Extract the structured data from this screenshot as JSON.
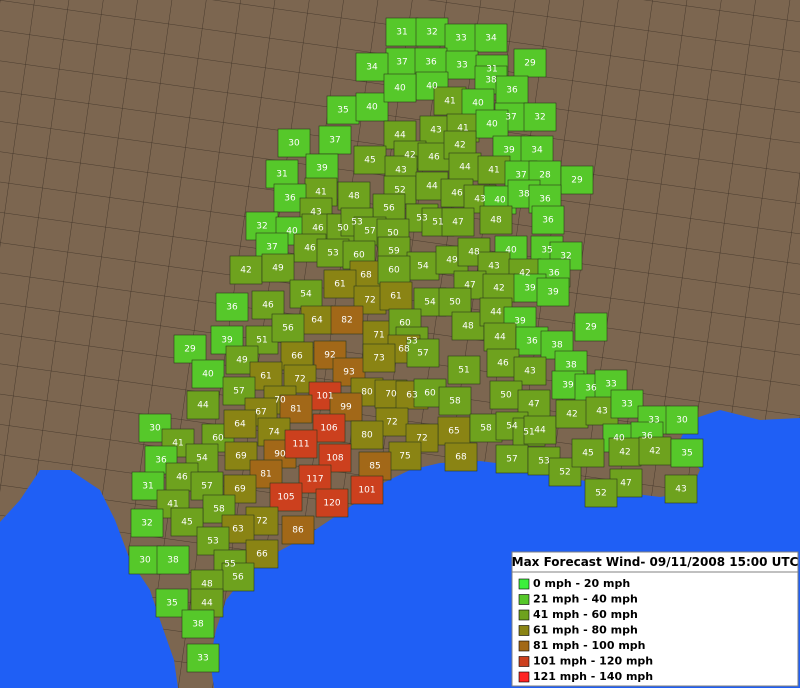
{
  "map": {
    "counties": [
      31,
      32,
      33,
      34,
      37,
      36,
      33,
      31,
      29,
      34,
      40,
      38,
      36,
      35,
      40,
      40,
      41,
      40,
      37,
      32,
      30,
      37,
      44,
      43,
      41,
      40,
      45,
      42,
      46,
      42,
      39,
      34,
      39,
      43,
      44,
      41,
      37,
      28,
      29,
      31,
      41,
      48,
      52,
      44,
      46,
      43,
      40,
      38,
      36,
      36,
      43,
      56,
      53,
      51,
      47,
      48,
      36,
      32,
      40,
      46,
      50,
      53,
      57,
      50,
      37,
      46,
      53,
      60,
      59,
      54,
      49,
      48,
      40,
      35,
      32,
      42,
      49,
      54,
      68,
      60,
      43,
      42,
      36,
      61,
      72,
      61,
      47,
      42,
      39,
      39,
      36,
      46,
      54,
      50,
      64,
      82,
      71,
      60,
      48,
      44,
      39,
      29,
      39,
      51,
      56,
      53,
      44,
      36,
      38,
      29,
      66,
      92,
      68,
      57,
      40,
      49,
      61,
      72,
      93,
      73,
      51,
      46,
      43,
      38,
      57,
      70,
      101,
      80,
      70,
      63,
      60,
      58,
      50,
      47,
      39,
      36,
      33,
      44,
      67,
      81,
      99,
      72,
      65,
      58,
      54,
      51,
      44,
      42,
      43,
      33,
      33,
      30,
      30,
      60,
      64,
      74,
      106,
      80,
      72,
      40,
      36,
      41,
      54,
      69,
      90,
      111,
      108,
      75,
      68,
      57,
      53,
      52,
      45,
      42,
      42,
      35,
      36,
      46,
      81,
      117,
      85,
      101,
      47,
      43,
      52,
      31,
      57,
      69,
      105,
      120,
      41,
      58,
      72,
      86,
      32,
      45,
      63,
      53,
      66,
      30,
      38,
      55,
      56,
      48,
      35,
      44,
      38,
      33
    ],
    "legend": {
      "title": "Max Forecast Wind- 09/11/2008 15:00 UTC",
      "items": [
        {
          "label": "0 mph - 20 mph",
          "color": "#3cf03c"
        },
        {
          "label": "21 mph - 40 mph",
          "color": "#56c82a"
        },
        {
          "label": "41 mph - 60 mph",
          "color": "#6ea21e"
        },
        {
          "label": "61 mph - 80 mph",
          "color": "#8a8414"
        },
        {
          "label": "81 mph - 100 mph",
          "color": "#a26818"
        },
        {
          "label": "101 mph - 120 mph",
          "color": "#cc401e"
        },
        {
          "label": "121 mph - 140 mph",
          "color": "#ff2424"
        }
      ]
    }
  }
}
